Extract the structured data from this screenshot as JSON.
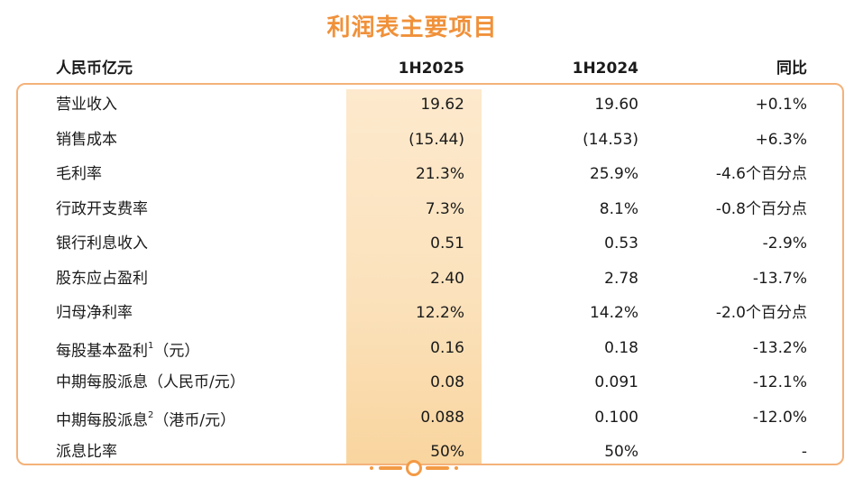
{
  "title": "利润表主要项目",
  "header": [
    "人民币亿元",
    "1H2025",
    "1H2024",
    "同比"
  ],
  "rows": [
    {
      "label": "营业收入",
      "sup": "",
      "suffix": "",
      "v2025": "19.62",
      "v2024": "19.60",
      "yoy": "+0.1%"
    },
    {
      "label": "销售成本",
      "sup": "",
      "suffix": "",
      "v2025": "(15.44)",
      "v2024": "(14.53)",
      "yoy": "+6.3%"
    },
    {
      "label": "毛利率",
      "sup": "",
      "suffix": "",
      "v2025": "21.3%",
      "v2024": "25.9%",
      "yoy": "-4.6个百分点"
    },
    {
      "label": "行政开支费率",
      "sup": "",
      "suffix": "",
      "v2025": "7.3%",
      "v2024": "8.1%",
      "yoy": "-0.8个百分点"
    },
    {
      "label": "银行利息收入",
      "sup": "",
      "suffix": "",
      "v2025": "0.51",
      "v2024": "0.53",
      "yoy": "-2.9%"
    },
    {
      "label": "股东应占盈利",
      "sup": "",
      "suffix": "",
      "v2025": "2.40",
      "v2024": "2.78",
      "yoy": "-13.7%"
    },
    {
      "label": "归母净利率",
      "sup": "",
      "suffix": "",
      "v2025": "12.2%",
      "v2024": "14.2%",
      "yoy": "-2.0个百分点"
    },
    {
      "label": "每股基本盈利",
      "sup": "1",
      "suffix": "（元）",
      "v2025": "0.16",
      "v2024": "0.18",
      "yoy": "-13.2%"
    },
    {
      "label": "中期每股派息（人民币/元）",
      "sup": "",
      "suffix": "",
      "v2025": "0.08",
      "v2024": "0.091",
      "yoy": "-12.1%"
    },
    {
      "label": "中期每股派息",
      "sup": "2",
      "suffix": "（港币/元）",
      "v2025": "0.088",
      "v2024": "0.100",
      "yoy": "-12.0%"
    },
    {
      "label": "派息比率",
      "sup": "",
      "suffix": "",
      "v2025": "50%",
      "v2024": "50%",
      "yoy": "-"
    }
  ],
  "colors": {
    "accent": "#f0913a",
    "frame": "#f4b27a",
    "highlight": "#fbe2bc"
  }
}
